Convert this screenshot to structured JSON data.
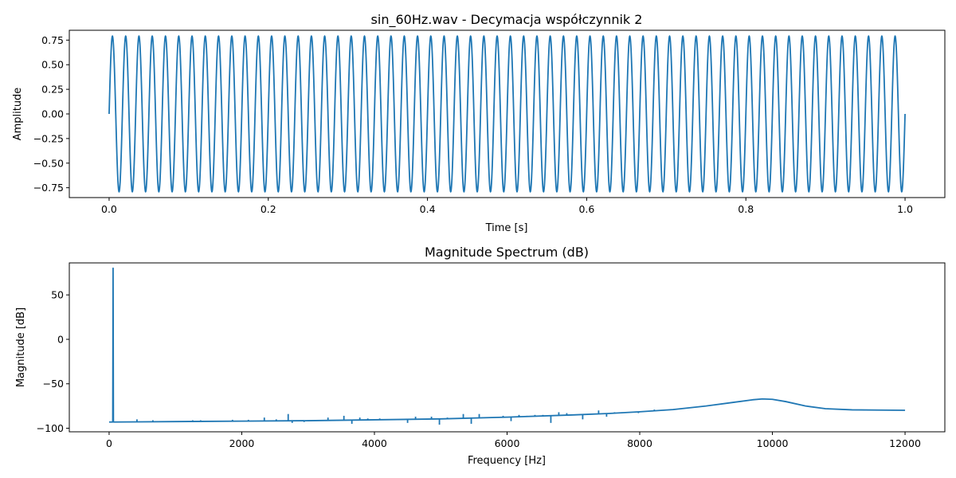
{
  "chart_data": [
    {
      "type": "line",
      "title": "sin_60Hz.wav - Decymacja współczynnik 2",
      "xlabel": "Time [s]",
      "ylabel": "Amplitude",
      "xlim": [
        -0.05,
        1.05
      ],
      "ylim": [
        -0.85,
        0.85
      ],
      "x_ticks": [
        0.0,
        0.2,
        0.4,
        0.6,
        0.8,
        1.0
      ],
      "x_tick_labels": [
        "0.0",
        "0.2",
        "0.4",
        "0.6",
        "0.8",
        "1.0"
      ],
      "y_ticks": [
        -0.75,
        -0.5,
        -0.25,
        0.0,
        0.25,
        0.5,
        0.75
      ],
      "y_tick_labels": [
        "−0.75",
        "−0.50",
        "−0.25",
        "0.00",
        "0.25",
        "0.50",
        "0.75"
      ],
      "grid": false,
      "color": "#1f77b4",
      "series": [
        {
          "signal": "sine",
          "frequency_hz": 60,
          "amplitude": 0.79,
          "x_start": 0.0,
          "x_end": 1.0
        }
      ]
    },
    {
      "type": "line",
      "title": "Magnitude Spectrum (dB)",
      "xlabel": "Frequency [Hz]",
      "ylabel": "Magnitude [dB]",
      "xlim": [
        -600,
        12600
      ],
      "ylim": [
        -104,
        86
      ],
      "x_ticks": [
        0,
        2000,
        4000,
        6000,
        8000,
        10000,
        12000
      ],
      "x_tick_labels": [
        "0",
        "2000",
        "4000",
        "6000",
        "8000",
        "10000",
        "12000"
      ],
      "y_ticks": [
        -100,
        -50,
        0,
        50
      ],
      "y_tick_labels": [
        "−100",
        "−50",
        "0",
        "50"
      ],
      "grid": false,
      "color": "#1f77b4",
      "series": [
        {
          "x": [
            0,
            55,
            60,
            65,
            500,
            1000,
            2000,
            3000,
            4000,
            5000,
            6000,
            7000,
            7500,
            8000,
            8500,
            9000,
            9400,
            9700,
            9850,
            10000,
            10200,
            10500,
            10800,
            11200,
            11600,
            12000
          ],
          "y": [
            -93,
            -93,
            80,
            -93,
            -92.8,
            -92.5,
            -92,
            -91.5,
            -90.5,
            -89.5,
            -87.5,
            -85,
            -83.5,
            -81.5,
            -79,
            -75,
            -71,
            -68,
            -67,
            -67.5,
            -70,
            -75,
            -78,
            -79.3,
            -79.6,
            -79.8
          ]
        }
      ],
      "spikes": [
        {
          "x": 420,
          "y": -90
        },
        {
          "x": 660,
          "y": -91
        },
        {
          "x": 1260,
          "y": -91
        },
        {
          "x": 1380,
          "y": -91
        },
        {
          "x": 1860,
          "y": -90.5
        },
        {
          "x": 2100,
          "y": -90.5
        },
        {
          "x": 2340,
          "y": -88
        },
        {
          "x": 2520,
          "y": -90
        },
        {
          "x": 2700,
          "y": -84
        },
        {
          "x": 2760,
          "y": -94
        },
        {
          "x": 2940,
          "y": -93
        },
        {
          "x": 3300,
          "y": -88
        },
        {
          "x": 3540,
          "y": -86
        },
        {
          "x": 3660,
          "y": -95
        },
        {
          "x": 3780,
          "y": -88
        },
        {
          "x": 3900,
          "y": -89
        },
        {
          "x": 4080,
          "y": -89
        },
        {
          "x": 4500,
          "y": -94
        },
        {
          "x": 4620,
          "y": -87
        },
        {
          "x": 4860,
          "y": -87
        },
        {
          "x": 4980,
          "y": -96
        },
        {
          "x": 5100,
          "y": -88
        },
        {
          "x": 5340,
          "y": -84
        },
        {
          "x": 5460,
          "y": -95
        },
        {
          "x": 5580,
          "y": -84
        },
        {
          "x": 5940,
          "y": -86
        },
        {
          "x": 6060,
          "y": -92
        },
        {
          "x": 6180,
          "y": -85
        },
        {
          "x": 6300,
          "y": -86
        },
        {
          "x": 6420,
          "y": -85
        },
        {
          "x": 6540,
          "y": -85
        },
        {
          "x": 6660,
          "y": -94
        },
        {
          "x": 6780,
          "y": -82
        },
        {
          "x": 6900,
          "y": -83
        },
        {
          "x": 7140,
          "y": -90
        },
        {
          "x": 7260,
          "y": -84
        },
        {
          "x": 7380,
          "y": -80
        },
        {
          "x": 7500,
          "y": -87
        },
        {
          "x": 7620,
          "y": -82
        },
        {
          "x": 7980,
          "y": -83
        },
        {
          "x": 8220,
          "y": -79
        }
      ]
    }
  ]
}
